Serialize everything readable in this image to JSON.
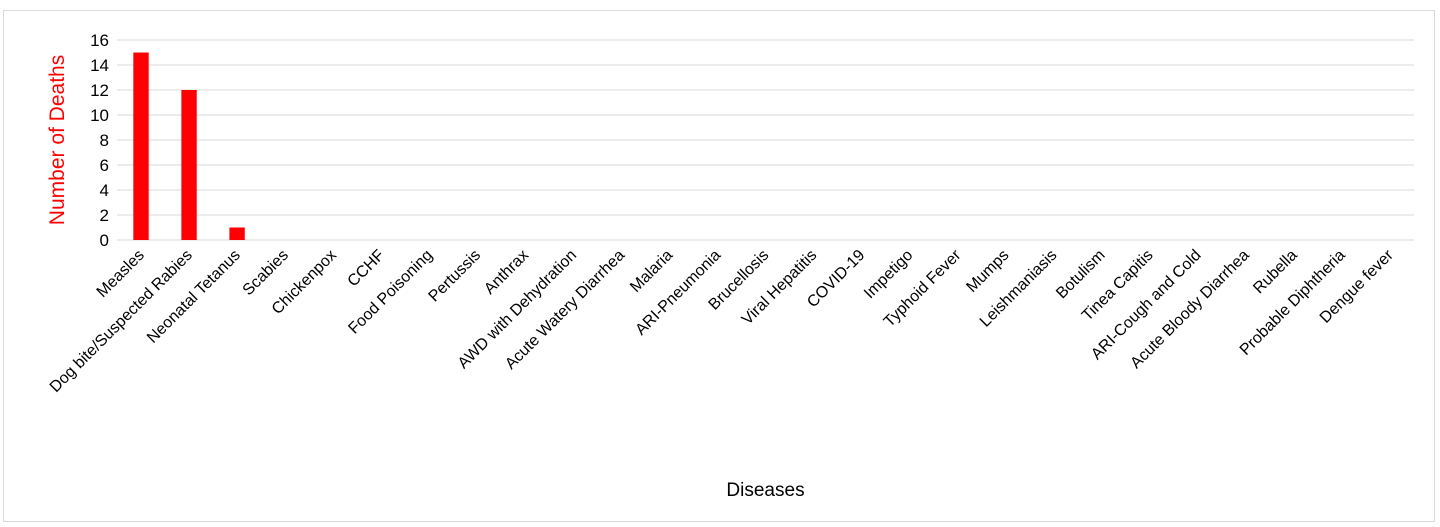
{
  "chart_data": {
    "type": "bar",
    "title": "",
    "xlabel": "Diseases",
    "ylabel": "Number of Deaths",
    "ylim": [
      0,
      16
    ],
    "yticks": [
      0,
      2,
      4,
      6,
      8,
      10,
      12,
      14,
      16
    ],
    "grid": true,
    "legend": "none",
    "bar_color": "#ff0000",
    "ylabel_color": "#ff0000",
    "grid_color": "#d9d9d9",
    "categories": [
      "Measles",
      "Dog bite/Suspected Rabies",
      "Neonatal Tetanus",
      "Scabies",
      "Chickenpox",
      "CCHF",
      "Food Poisoning",
      "Pertussis",
      "Anthrax",
      "AWD with Dehydration",
      "Acute Watery Diarrhea",
      "Malaria",
      "ARI-Pneumonia",
      "Brucellosis",
      "Viral Hepatitis",
      "COVID-19",
      "Impetigo",
      "Typhoid Fever",
      "Mumps",
      "Leishmaniasis",
      "Botulism",
      "Tinea Capitis",
      "ARI-Cough and Cold",
      "Acute Bloody Diarrhea",
      "Rubella",
      "Probable Diphtheria",
      "Dengue fever"
    ],
    "values": [
      15,
      12,
      1,
      0,
      0,
      0,
      0,
      0,
      0,
      0,
      0,
      0,
      0,
      0,
      0,
      0,
      0,
      0,
      0,
      0,
      0,
      0,
      0,
      0,
      0,
      0,
      0
    ]
  }
}
